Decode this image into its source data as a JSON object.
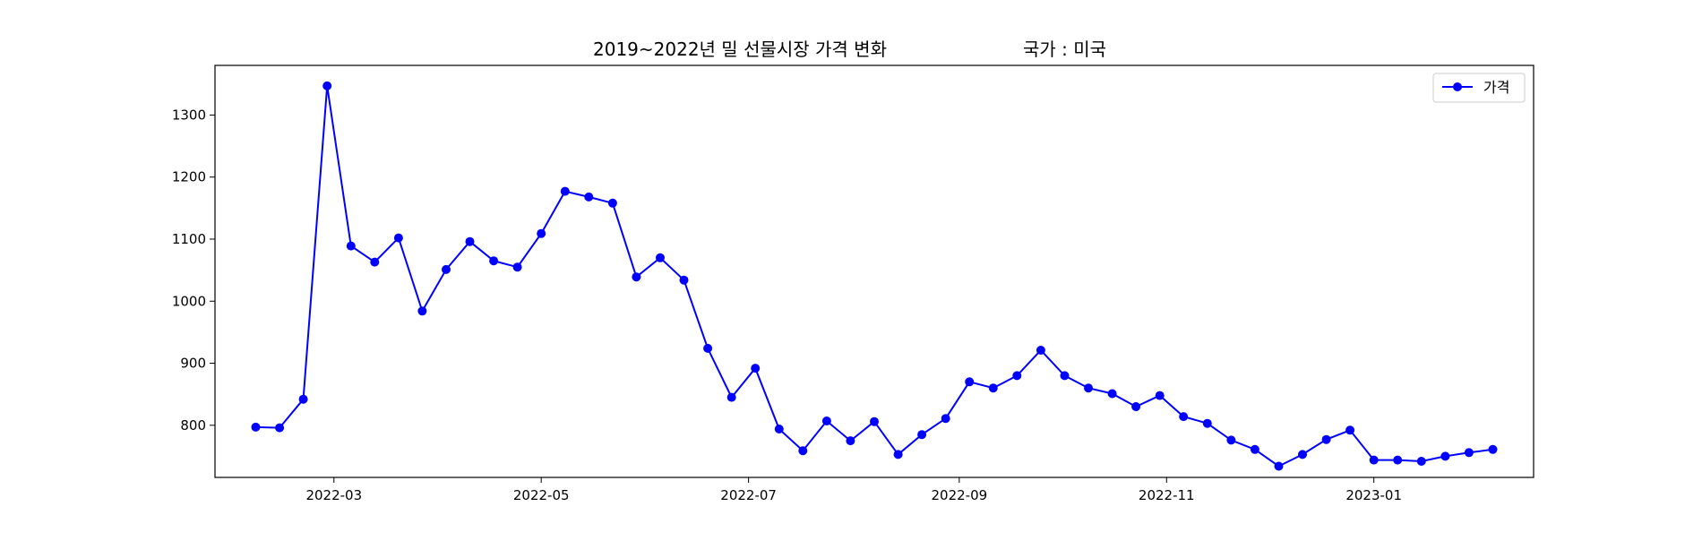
{
  "chart_data": {
    "type": "line",
    "title": "2019~2022년 밀 선물시장 가격 변화",
    "subtitle": "국가 : 미국",
    "xlabel": "",
    "ylabel": "",
    "grid": false,
    "legend_position": "top-right",
    "x_ticks": [
      "2022-03",
      "2022-05",
      "2022-07",
      "2022-09",
      "2022-11",
      "2023-01"
    ],
    "x_tick_dates": [
      "2022-03-01",
      "2022-05-01",
      "2022-07-01",
      "2022-09-01",
      "2022-11-01",
      "2023-01-01"
    ],
    "y_ticks": [
      800,
      900,
      1000,
      1100,
      1200,
      1300
    ],
    "xlim": [
      "2022-01-25",
      "2023-02-17"
    ],
    "ylim": [
      716,
      1380
    ],
    "series": [
      {
        "name": "가격",
        "color": "#0000ff",
        "marker": "circle",
        "x": [
          "2022-02-06",
          "2022-02-13",
          "2022-02-20",
          "2022-02-27",
          "2022-03-06",
          "2022-03-13",
          "2022-03-20",
          "2022-03-27",
          "2022-04-03",
          "2022-04-10",
          "2022-04-17",
          "2022-04-24",
          "2022-05-01",
          "2022-05-08",
          "2022-05-15",
          "2022-05-22",
          "2022-05-29",
          "2022-06-05",
          "2022-06-12",
          "2022-06-19",
          "2022-06-26",
          "2022-07-03",
          "2022-07-10",
          "2022-07-17",
          "2022-07-24",
          "2022-07-31",
          "2022-08-07",
          "2022-08-14",
          "2022-08-21",
          "2022-08-28",
          "2022-09-04",
          "2022-09-11",
          "2022-09-18",
          "2022-09-25",
          "2022-10-02",
          "2022-10-09",
          "2022-10-16",
          "2022-10-23",
          "2022-10-30",
          "2022-11-06",
          "2022-11-13",
          "2022-11-20",
          "2022-11-27",
          "2022-12-04",
          "2022-12-11",
          "2022-12-18",
          "2022-12-25",
          "2023-01-01",
          "2023-01-08",
          "2023-01-15",
          "2023-01-22",
          "2023-01-29",
          "2023-02-05"
        ],
        "values": [
          797,
          796,
          842,
          1347,
          1089,
          1063,
          1102,
          984,
          1051,
          1096,
          1065,
          1055,
          1109,
          1177,
          1168,
          1158,
          1039,
          1070,
          1034,
          924,
          845,
          892,
          794,
          759,
          807,
          775,
          806,
          753,
          785,
          811,
          870,
          860,
          880,
          921,
          880,
          860,
          851,
          830,
          848,
          814,
          803,
          776,
          761,
          734,
          753,
          777,
          792,
          744,
          744,
          742,
          750,
          756,
          761
        ]
      }
    ]
  }
}
